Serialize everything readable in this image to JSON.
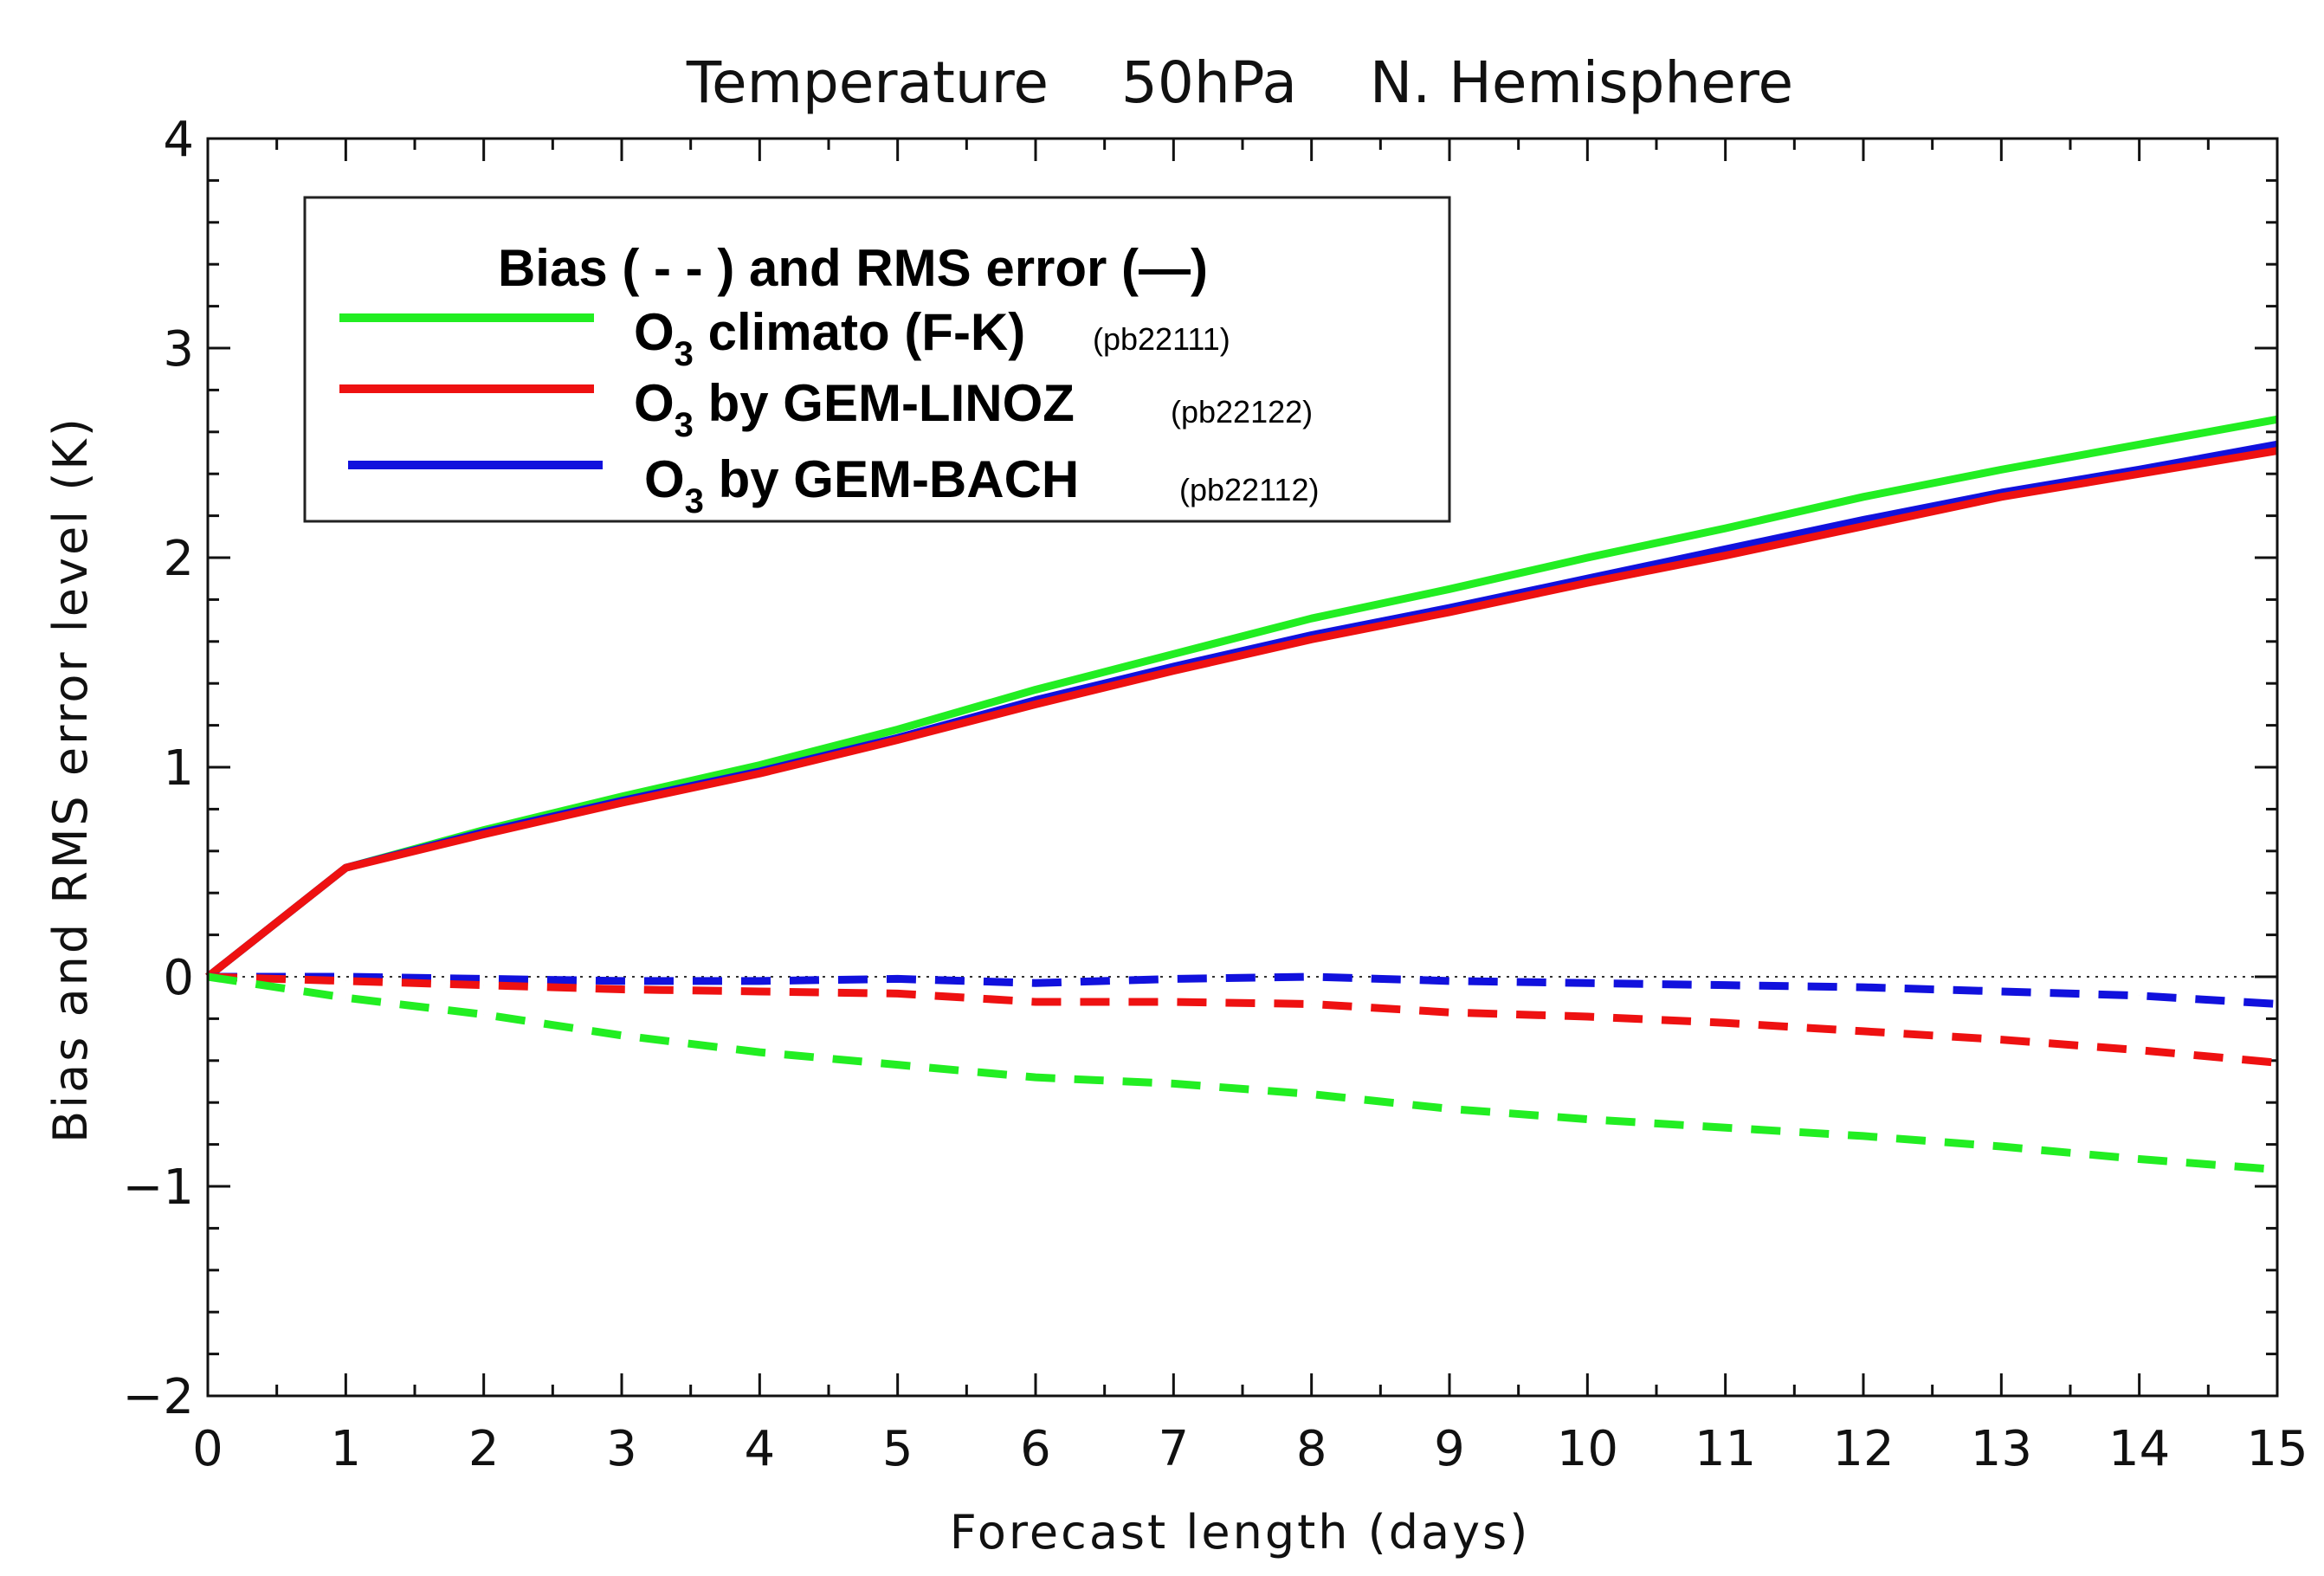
{
  "chart_data": {
    "type": "line",
    "title": "Temperature    50hPa    N. Hemisphere",
    "xlabel": "Forecast length (days)",
    "ylabel": "Bias and RMS error level (K)",
    "xlim": [
      0,
      15
    ],
    "ylim": [
      -2,
      4
    ],
    "xticks": [
      0,
      1,
      2,
      3,
      4,
      5,
      6,
      7,
      8,
      9,
      10,
      11,
      12,
      13,
      14,
      15
    ],
    "yticks": [
      -2,
      -1,
      0,
      1,
      2,
      3,
      4
    ],
    "x": [
      0,
      1,
      2,
      3,
      4,
      5,
      6,
      7,
      8,
      9,
      10,
      11,
      12,
      13,
      14,
      15
    ],
    "legend": {
      "title": "Bias ( - - ) and RMS error (—)",
      "entries": [
        {
          "prefix": "O",
          "sub": "3",
          "label": " climato (F-K)",
          "code": "(pb22111)",
          "color": "#22ee22"
        },
        {
          "prefix": "O",
          "sub": "3",
          "label": " by GEM-LINOZ",
          "code": "(pb22122)",
          "color": "#ee1111"
        },
        {
          "prefix": "O",
          "sub": "3",
          "label": " by GEM-BACH",
          "code": "(pb22112)",
          "color": "#1111dd"
        }
      ],
      "position": "top-left"
    },
    "series": [
      {
        "name": "O3 climato (F-K) RMS",
        "style": "solid",
        "color": "#22ee22",
        "values": [
          0.0,
          0.52,
          0.7,
          0.86,
          1.01,
          1.18,
          1.37,
          1.54,
          1.71,
          1.85,
          2.0,
          2.14,
          2.29,
          2.42,
          2.54,
          2.66
        ]
      },
      {
        "name": "O3 by GEM-BACH RMS",
        "style": "solid",
        "color": "#1111dd",
        "values": [
          0.0,
          0.52,
          0.69,
          0.84,
          0.98,
          1.14,
          1.32,
          1.48,
          1.63,
          1.76,
          1.9,
          2.04,
          2.18,
          2.31,
          2.42,
          2.54
        ]
      },
      {
        "name": "O3 by GEM-LINOZ RMS",
        "style": "solid",
        "color": "#ee1111",
        "values": [
          0.0,
          0.52,
          0.68,
          0.83,
          0.97,
          1.13,
          1.3,
          1.46,
          1.61,
          1.74,
          1.88,
          2.01,
          2.15,
          2.29,
          2.4,
          2.51
        ]
      },
      {
        "name": "O3 by GEM-BACH bias",
        "style": "dashed",
        "color": "#1111dd",
        "values": [
          0.0,
          0.0,
          -0.01,
          -0.02,
          -0.02,
          -0.01,
          -0.03,
          -0.01,
          0.0,
          -0.02,
          -0.03,
          -0.04,
          -0.05,
          -0.07,
          -0.09,
          -0.13
        ]
      },
      {
        "name": "O3 by GEM-LINOZ bias",
        "style": "dashed",
        "color": "#ee1111",
        "values": [
          0.0,
          -0.02,
          -0.04,
          -0.06,
          -0.07,
          -0.08,
          -0.12,
          -0.12,
          -0.13,
          -0.17,
          -0.19,
          -0.22,
          -0.26,
          -0.3,
          -0.35,
          -0.41
        ]
      },
      {
        "name": "O3 climato (F-K) bias",
        "style": "dashed",
        "color": "#22ee22",
        "values": [
          0.0,
          -0.1,
          -0.18,
          -0.28,
          -0.36,
          -0.42,
          -0.48,
          -0.51,
          -0.56,
          -0.63,
          -0.68,
          -0.72,
          -0.76,
          -0.81,
          -0.87,
          -0.92
        ]
      }
    ]
  }
}
